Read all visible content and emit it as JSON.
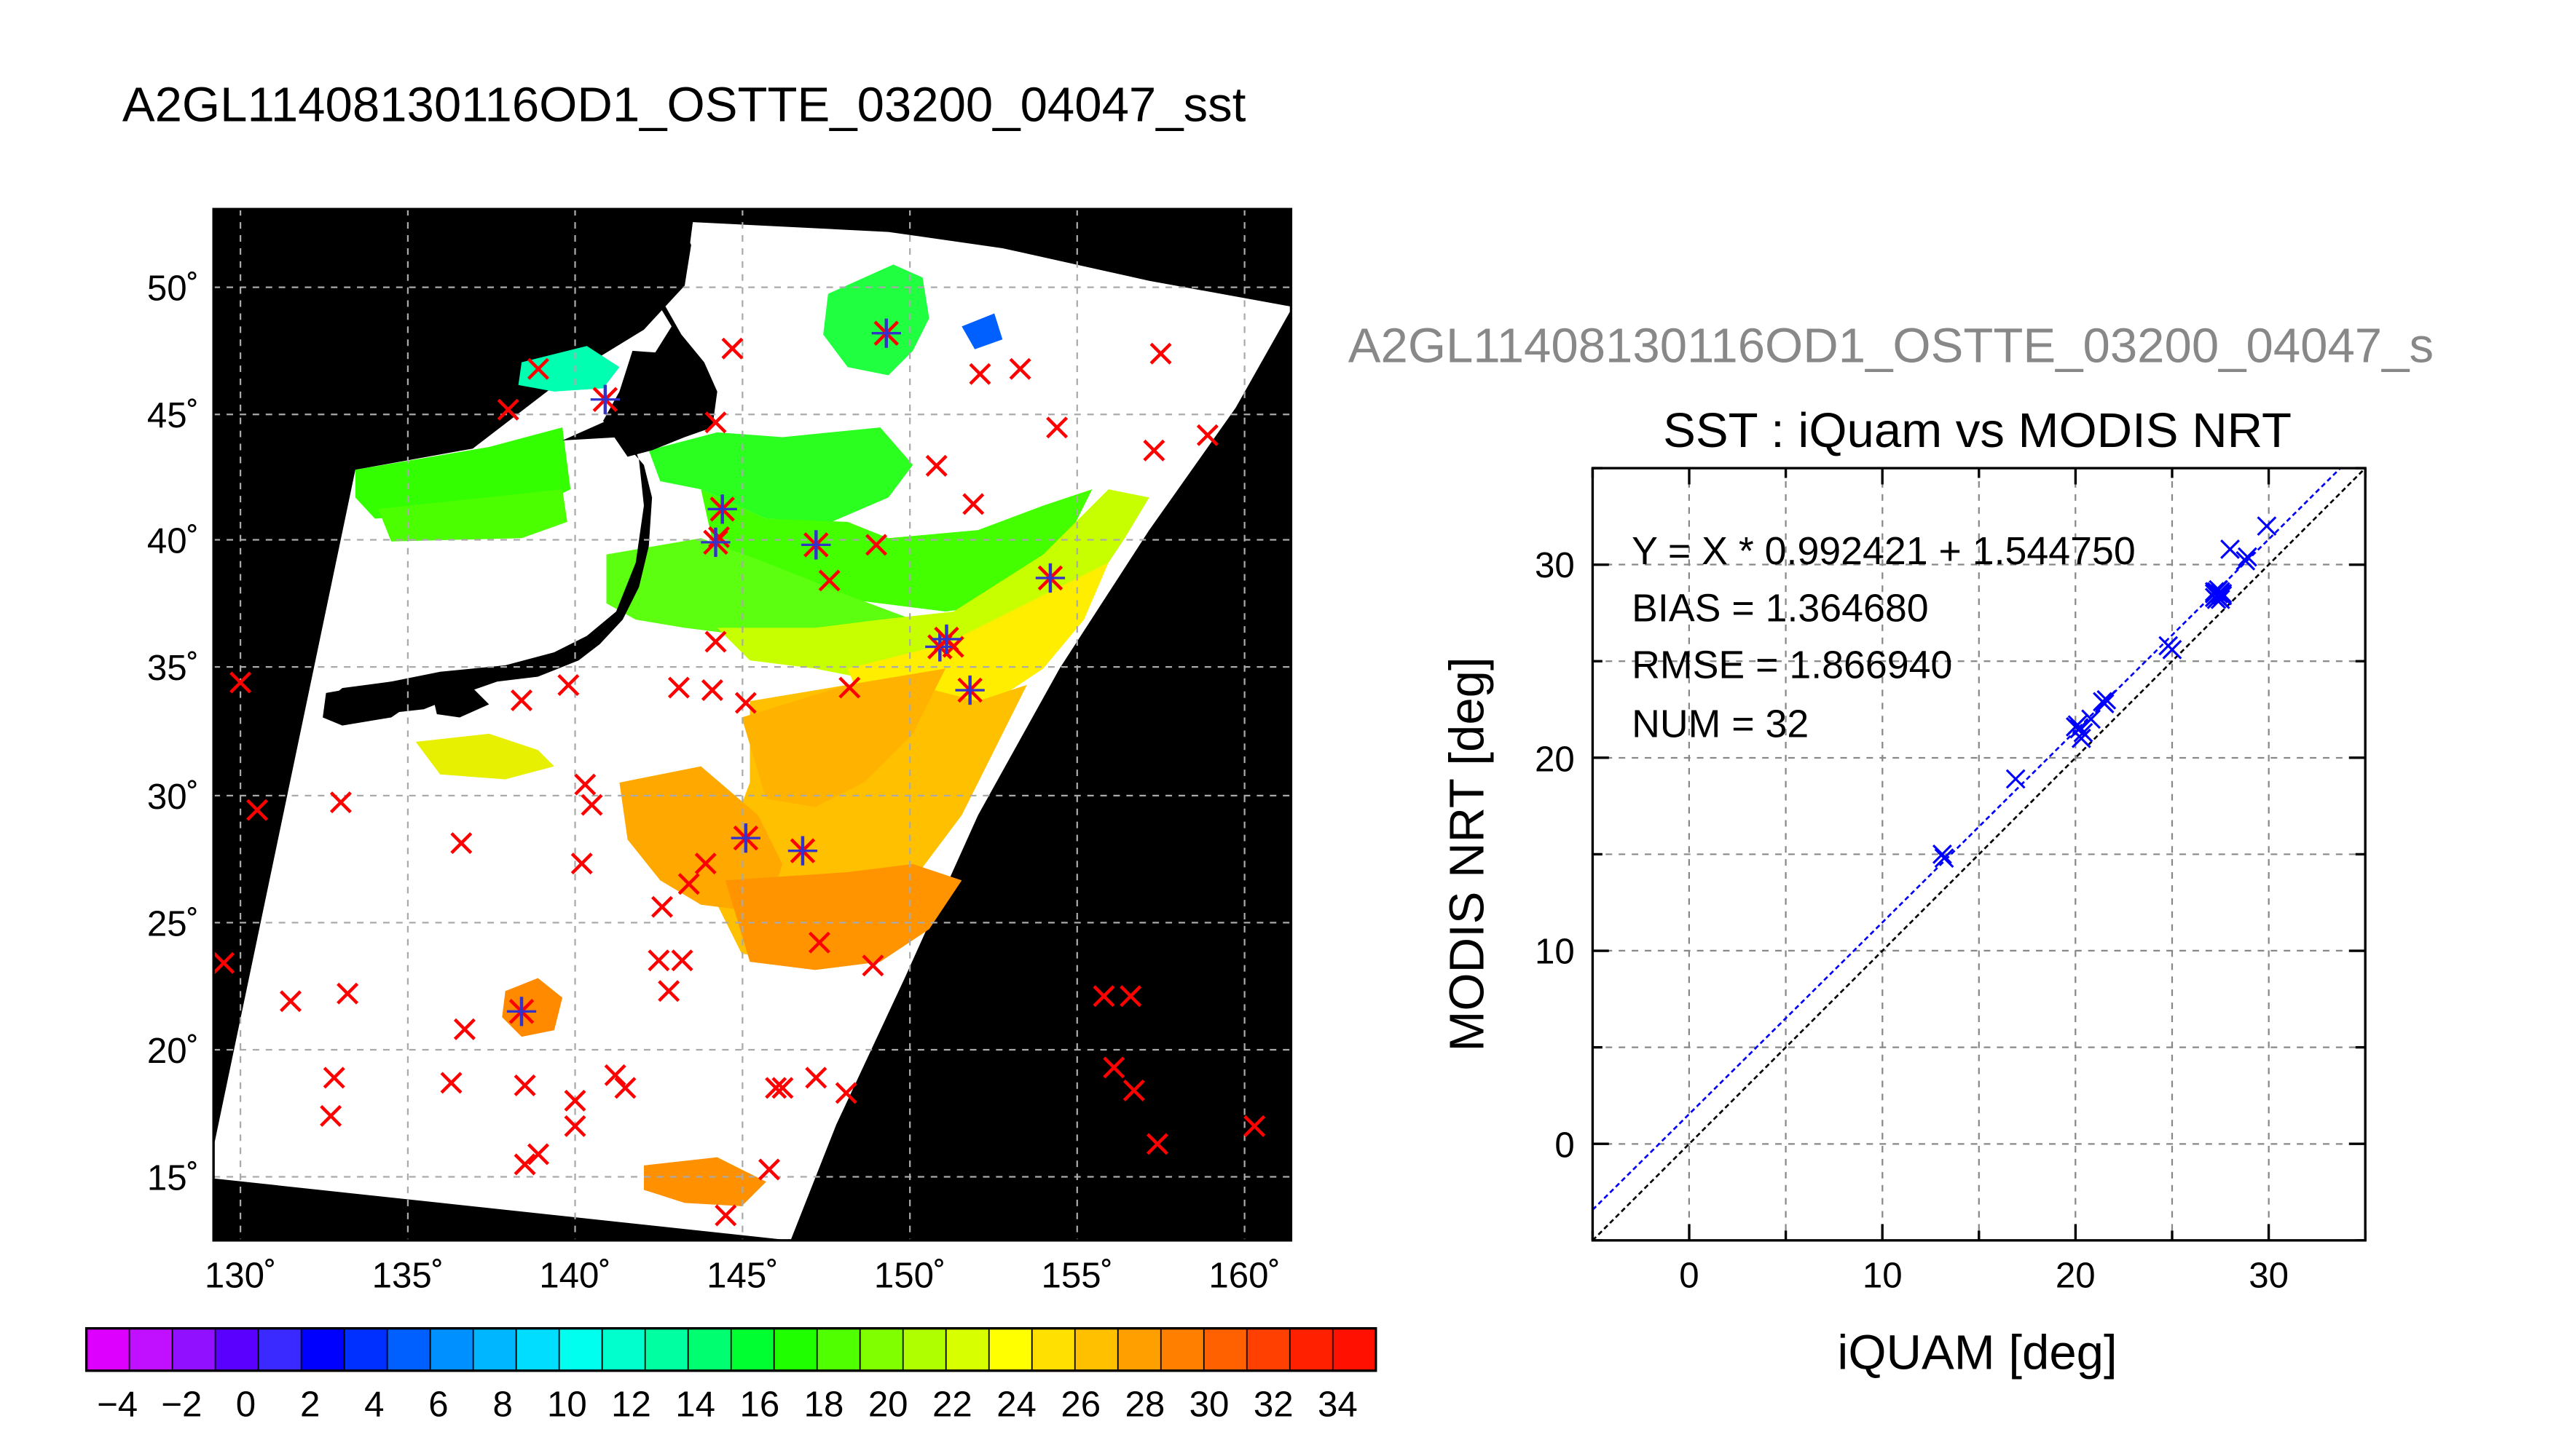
{
  "map_title": "A2GL11408130116OD1_OSTTE_03200_04047_sst",
  "scatter_file_title": "A2GL11408130116OD1_OSTTE_03200_04047_s",
  "map": {
    "lon_ticks": [
      "130˚",
      "135˚",
      "140˚",
      "145˚",
      "150˚",
      "155˚",
      "160˚"
    ],
    "lat_ticks": [
      "50˚",
      "45˚",
      "40˚",
      "35˚",
      "30˚",
      "25˚",
      "20˚",
      "15˚"
    ],
    "lon_range": [
      129.3,
      161.2
    ],
    "lat_range": [
      12.4,
      53.1
    ],
    "background_color": "#000000",
    "swath_fill_color": "#ffffff",
    "red_marker_color": "#ff0000",
    "blue_marker_color": "#3333cc",
    "red_markers": [
      [
        129.5,
        23.5
      ],
      [
        130,
        34.5
      ],
      [
        130.5,
        29.5
      ],
      [
        131.5,
        22
      ],
      [
        132.7,
        17.5
      ],
      [
        132.8,
        19
      ],
      [
        133,
        29.8
      ],
      [
        133.2,
        22.3
      ],
      [
        136.3,
        18.8
      ],
      [
        136.6,
        28.2
      ],
      [
        136.7,
        20.9
      ],
      [
        138,
        45.2
      ],
      [
        138.4,
        33.8
      ],
      [
        138.5,
        18.7
      ],
      [
        138.5,
        15.6
      ],
      [
        138.9,
        16
      ],
      [
        138.9,
        46.8
      ],
      [
        139.8,
        34.4
      ],
      [
        140,
        17.1
      ],
      [
        140,
        18.1
      ],
      [
        140.2,
        27.4
      ],
      [
        140.3,
        30.5
      ],
      [
        140.5,
        29.7
      ],
      [
        141.2,
        19.1
      ],
      [
        141.5,
        18.6
      ],
      [
        142.5,
        23.6
      ],
      [
        142.6,
        25.7
      ],
      [
        142.8,
        22.4
      ],
      [
        143.1,
        34.3
      ],
      [
        143.2,
        23.6
      ],
      [
        143.4,
        26.6
      ],
      [
        143.9,
        27.4
      ],
      [
        144.1,
        34.2
      ],
      [
        144.2,
        36.1
      ],
      [
        144.2,
        44.7
      ],
      [
        144.3,
        40.2
      ],
      [
        144.5,
        13.6
      ],
      [
        144.7,
        47.6
      ],
      [
        145.1,
        33.7
      ],
      [
        145.8,
        15.4
      ],
      [
        146,
        18.6
      ],
      [
        146.2,
        18.6
      ],
      [
        147.2,
        19
      ],
      [
        147.3,
        24.3
      ],
      [
        147.6,
        38.5
      ],
      [
        148.1,
        18.4
      ],
      [
        148.2,
        34.3
      ],
      [
        148.9,
        23.4
      ],
      [
        149,
        39.9
      ],
      [
        150.8,
        43
      ],
      [
        151.3,
        35.9
      ],
      [
        151.9,
        41.5
      ],
      [
        152.1,
        46.6
      ],
      [
        153.3,
        46.8
      ],
      [
        154.4,
        44.5
      ],
      [
        155.8,
        22.2
      ],
      [
        156.1,
        19.4
      ],
      [
        156.6,
        22.2
      ],
      [
        156.7,
        18.5
      ],
      [
        157.4,
        16.4
      ],
      [
        157.3,
        43.6
      ],
      [
        157.5,
        47.4
      ],
      [
        158.9,
        44.2
      ],
      [
        160.3,
        17.1
      ]
    ],
    "blue_markers": [
      [
        140.9,
        45.6
      ],
      [
        144.4,
        41.3
      ],
      [
        144.2,
        40
      ],
      [
        145.1,
        28.4
      ],
      [
        146.8,
        27.9
      ],
      [
        147.2,
        39.9
      ],
      [
        149.3,
        48.2
      ],
      [
        150.9,
        35.9
      ],
      [
        151.1,
        36.2
      ],
      [
        151.8,
        34.2
      ],
      [
        154.2,
        38.6
      ],
      [
        138.4,
        21.6
      ]
    ]
  },
  "colorbar": {
    "tick_labels": [
      "−4",
      "−2",
      "0",
      "2",
      "4",
      "6",
      "8",
      "10",
      "12",
      "14",
      "16",
      "18",
      "20",
      "22",
      "24",
      "26",
      "28",
      "30",
      "32",
      "34"
    ],
    "colors": [
      "#dd00ff",
      "#c010ff",
      "#9010ff",
      "#5a00ff",
      "#3a2aff",
      "#0000ff",
      "#0030ff",
      "#0060ff",
      "#0090ff",
      "#00b6ff",
      "#00ddff",
      "#00ffee",
      "#00ffcc",
      "#00ffa0",
      "#00ff70",
      "#00ff30",
      "#20ff00",
      "#50ff00",
      "#80ff00",
      "#b0ff00",
      "#d8ff00",
      "#ffff00",
      "#ffe000",
      "#ffc000",
      "#ff9f00",
      "#ff8000",
      "#ff6000",
      "#ff4000",
      "#ff2000",
      "#ff1000"
    ]
  },
  "chart_data": {
    "type": "scatter",
    "title": "SST : iQuam vs MODIS NRT",
    "xlabel": "iQUAM [deg]",
    "ylabel": "MODIS NRT [deg]",
    "xlim": [
      -5,
      35
    ],
    "ylim": [
      -5,
      35
    ],
    "xticks": [
      0,
      10,
      20,
      30
    ],
    "yticks": [
      0,
      10,
      20,
      30
    ],
    "grid": true,
    "stats": [
      "Y = X * 0.992421 + 1.544750",
      "BIAS = 1.364680",
      "RMSE = 1.866940",
      "NUM = 32"
    ],
    "regression": {
      "slope": 0.992421,
      "intercept": 1.54475
    },
    "one_to_one_line": true,
    "marker_color": "#0000ff",
    "points": [
      [
        13.1,
        15.0
      ],
      [
        13.2,
        14.8
      ],
      [
        16.9,
        18.9
      ],
      [
        20.0,
        21.6
      ],
      [
        20.1,
        21.7
      ],
      [
        20.3,
        21.0
      ],
      [
        20.4,
        21.3
      ],
      [
        20.8,
        22.0
      ],
      [
        21.4,
        22.9
      ],
      [
        21.5,
        22.8
      ],
      [
        24.8,
        25.8
      ],
      [
        25.0,
        25.6
      ],
      [
        27.2,
        28.3
      ],
      [
        27.2,
        28.5
      ],
      [
        27.3,
        28.6
      ],
      [
        27.4,
        28.3
      ],
      [
        27.5,
        28.6
      ],
      [
        27.4,
        28.7
      ],
      [
        27.6,
        28.4
      ],
      [
        27.3,
        28.2
      ],
      [
        27.5,
        28.5
      ],
      [
        27.6,
        28.5
      ],
      [
        27.2,
        28.6
      ],
      [
        27.3,
        28.4
      ],
      [
        28.0,
        30.8
      ],
      [
        28.8,
        30.2
      ],
      [
        28.9,
        30.4
      ],
      [
        29.9,
        32.0
      ],
      [
        27.5,
        28.2
      ],
      [
        27.4,
        28.5
      ],
      [
        20.2,
        21.5
      ],
      [
        21.6,
        23.0
      ]
    ]
  }
}
